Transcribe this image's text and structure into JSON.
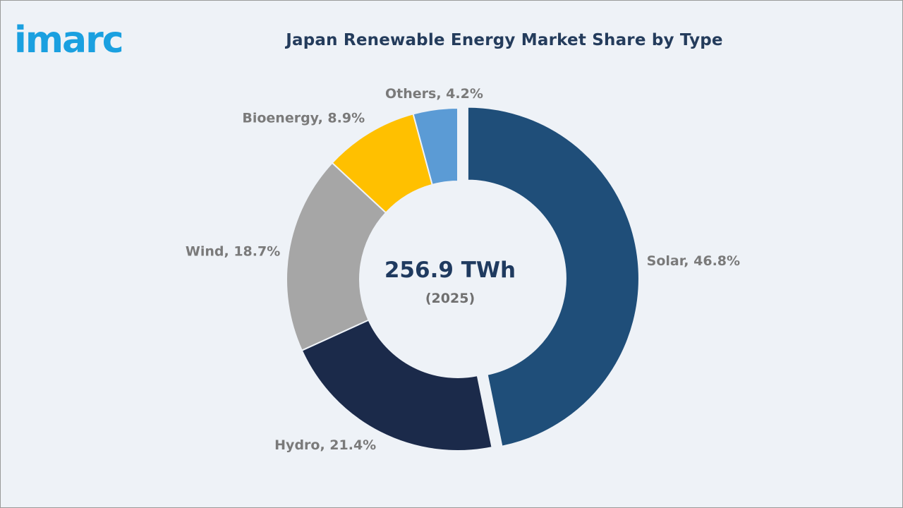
{
  "brand": {
    "logo_text": "imarc",
    "logo_color": "#1aa0e0"
  },
  "chart_data": {
    "type": "pie",
    "variant": "donut",
    "title": "Japan Renewable Energy Market Share by Type",
    "center_value": "256.9 TWh",
    "center_subtitle": "(2025)",
    "slices": [
      {
        "label": "Solar, 46.8%",
        "category": "Solar",
        "value": 46.8,
        "color": "#1f4e79",
        "exploded": true
      },
      {
        "label": "Hydro, 21.4%",
        "category": "Hydro",
        "value": 21.4,
        "color": "#1b2a4a",
        "exploded": false
      },
      {
        "label": "Wind, 18.7%",
        "category": "Wind",
        "value": 18.7,
        "color": "#a6a6a6",
        "exploded": false
      },
      {
        "label": "Bioenergy, 8.9%",
        "category": "Bioenergy",
        "value": 8.9,
        "color": "#ffc000",
        "exploded": false
      },
      {
        "label": "Others, 4.2%",
        "category": "Others",
        "value": 4.2,
        "color": "#5b9bd5",
        "exploded": false
      }
    ]
  }
}
